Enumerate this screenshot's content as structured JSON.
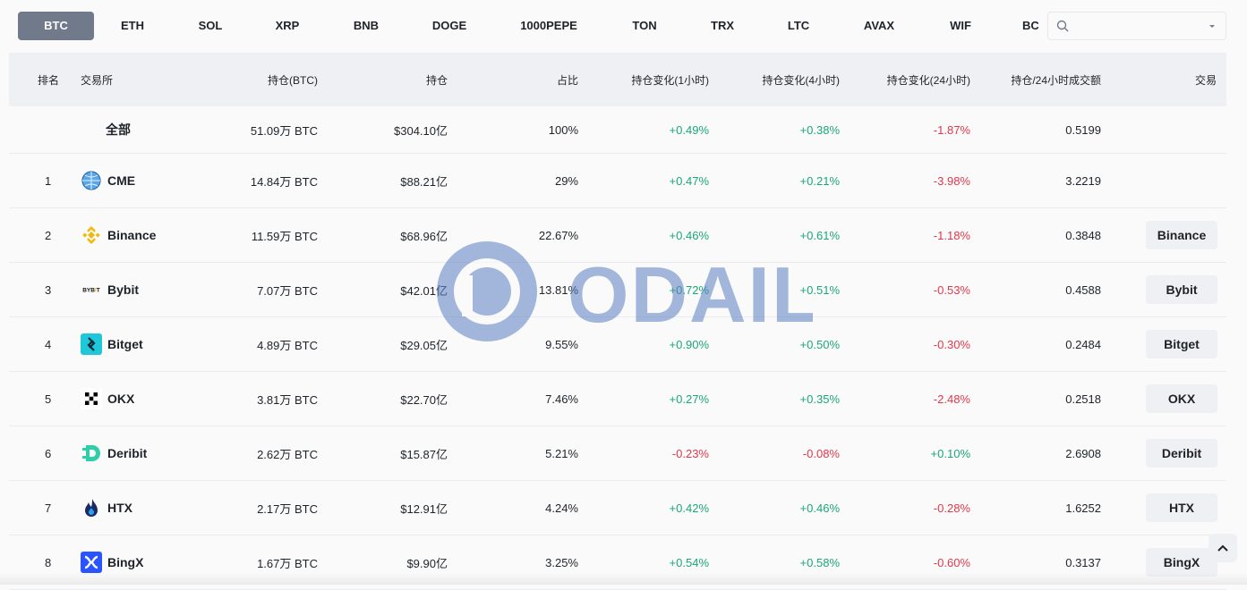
{
  "tabs": [
    "BTC",
    "ETH",
    "SOL",
    "XRP",
    "BNB",
    "DOGE",
    "1000PEPE",
    "TON",
    "TRX",
    "LTC",
    "AVAX",
    "WIF",
    "BC"
  ],
  "active_tab": "BTC",
  "search": {
    "placeholder": ""
  },
  "headers": {
    "rank": "排名",
    "exchange": "交易所",
    "oi_coin": "持仓(BTC)",
    "oi_usd": "持仓",
    "share": "占比",
    "chg_1h": "持仓变化(1小时)",
    "chg_4h": "持仓变化(4小时)",
    "chg_24h": "持仓变化(24小时)",
    "oi_vol_ratio": "持仓/24小时成交额",
    "trade": "交易"
  },
  "total_row": {
    "label": "全部",
    "oi_coin": "51.09万 BTC",
    "oi_usd": "$304.10亿",
    "share": "100%",
    "chg_1h": "+0.49%",
    "chg_4h": "+0.38%",
    "chg_24h": "-1.87%",
    "ratio": "0.5199"
  },
  "rows": [
    {
      "rank": "1",
      "name": "CME",
      "oi_coin": "14.84万 BTC",
      "oi_usd": "$88.21亿",
      "share": "29%",
      "chg_1h": "+0.47%",
      "chg_4h": "+0.21%",
      "chg_24h": "-3.98%",
      "ratio": "3.2219",
      "trade": "",
      "logo": "cme-globe-icon"
    },
    {
      "rank": "2",
      "name": "Binance",
      "oi_coin": "11.59万 BTC",
      "oi_usd": "$68.96亿",
      "share": "22.67%",
      "chg_1h": "+0.46%",
      "chg_4h": "+0.61%",
      "chg_24h": "-1.18%",
      "ratio": "0.3848",
      "trade": "Binance",
      "logo": "binance-icon"
    },
    {
      "rank": "3",
      "name": "Bybit",
      "oi_coin": "7.07万 BTC",
      "oi_usd": "$42.01亿",
      "share": "13.81%",
      "chg_1h": "+0.72%",
      "chg_4h": "+0.51%",
      "chg_24h": "-0.53%",
      "ratio": "0.4588",
      "trade": "Bybit",
      "logo": "bybit-icon"
    },
    {
      "rank": "4",
      "name": "Bitget",
      "oi_coin": "4.89万 BTC",
      "oi_usd": "$29.05亿",
      "share": "9.55%",
      "chg_1h": "+0.90%",
      "chg_4h": "+0.50%",
      "chg_24h": "-0.30%",
      "ratio": "0.2484",
      "trade": "Bitget",
      "logo": "bitget-icon"
    },
    {
      "rank": "5",
      "name": "OKX",
      "oi_coin": "3.81万 BTC",
      "oi_usd": "$22.70亿",
      "share": "7.46%",
      "chg_1h": "+0.27%",
      "chg_4h": "+0.35%",
      "chg_24h": "-2.48%",
      "ratio": "0.2518",
      "trade": "OKX",
      "logo": "okx-icon"
    },
    {
      "rank": "6",
      "name": "Deribit",
      "oi_coin": "2.62万 BTC",
      "oi_usd": "$15.87亿",
      "share": "5.21%",
      "chg_1h": "-0.23%",
      "chg_4h": "-0.08%",
      "chg_24h": "+0.10%",
      "ratio": "2.6908",
      "trade": "Deribit",
      "logo": "deribit-icon"
    },
    {
      "rank": "7",
      "name": "HTX",
      "oi_coin": "2.17万 BTC",
      "oi_usd": "$12.91亿",
      "share": "4.24%",
      "chg_1h": "+0.42%",
      "chg_4h": "+0.46%",
      "chg_24h": "-0.28%",
      "ratio": "1.6252",
      "trade": "HTX",
      "logo": "htx-flame-icon"
    },
    {
      "rank": "8",
      "name": "BingX",
      "oi_coin": "1.67万 BTC",
      "oi_usd": "$9.90亿",
      "share": "3.25%",
      "chg_1h": "+0.54%",
      "chg_4h": "+0.58%",
      "chg_24h": "-0.60%",
      "ratio": "0.3137",
      "trade": "BingX",
      "logo": "bingx-icon"
    }
  ],
  "watermark": "ODAILY",
  "colors": {
    "positive": "#1aa876",
    "negative": "#e0384c",
    "active_tab": "#707a8a",
    "header_bg": "#eef0f4"
  }
}
